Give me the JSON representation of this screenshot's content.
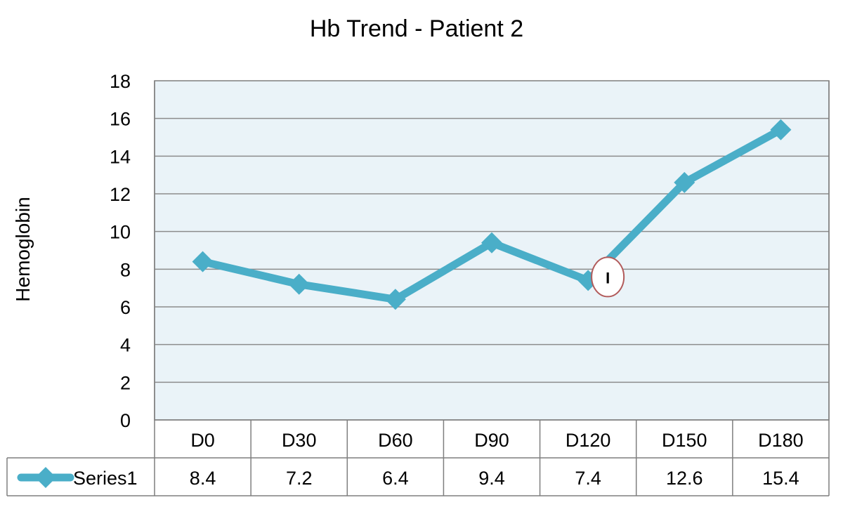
{
  "chart_data": {
    "type": "line",
    "title": "Hb Trend - Patient 2",
    "xlabel": "",
    "ylabel": "Hemoglobin",
    "categories": [
      "D0",
      "D30",
      "D60",
      "D90",
      "D120",
      "D150",
      "D180"
    ],
    "series": [
      {
        "name": "Series1",
        "values": [
          8.4,
          7.2,
          6.4,
          9.4,
          7.4,
          12.6,
          15.4
        ],
        "color": "#4aaec8"
      }
    ],
    "ylim": [
      0,
      18
    ],
    "yticks": [
      0,
      2,
      4,
      6,
      8,
      10,
      12,
      14,
      16,
      18
    ],
    "grid": true,
    "data_table": true,
    "marker": "diamond",
    "plot_background": "#eaf3f8",
    "annotation": {
      "category": "D120",
      "text": "I",
      "shape": "circle"
    }
  }
}
